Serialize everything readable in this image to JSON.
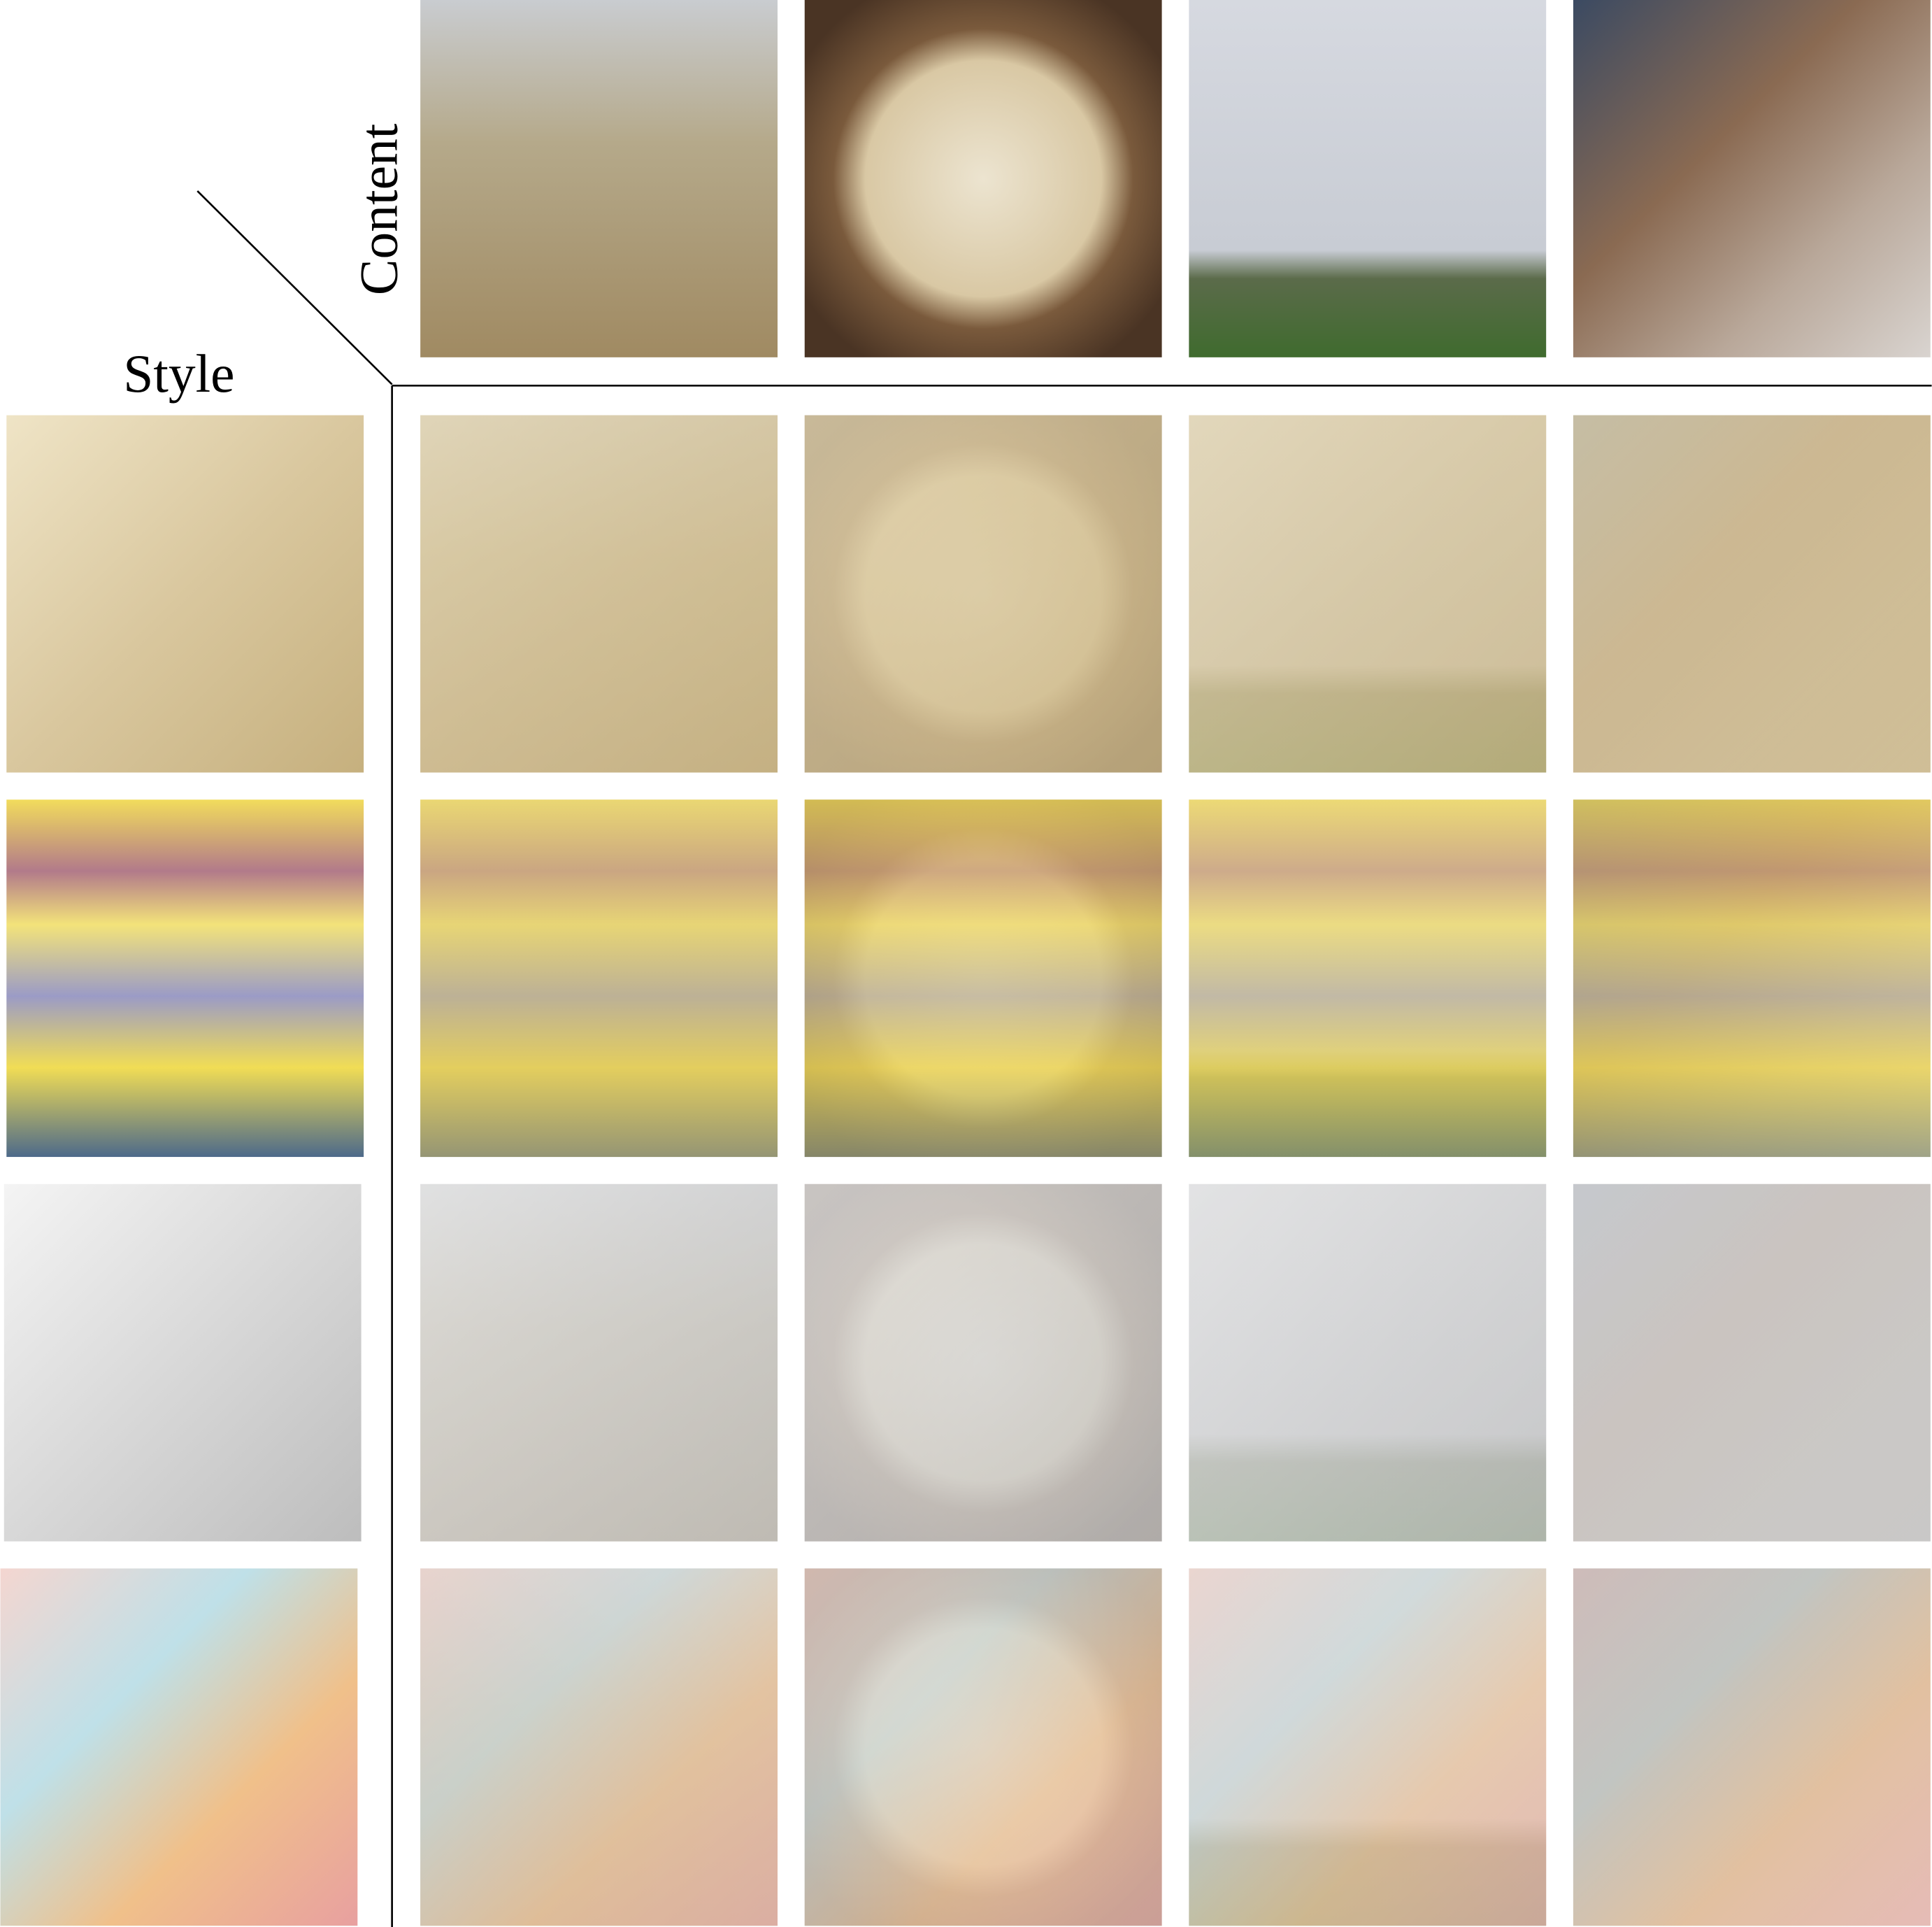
{
  "labels": {
    "content": "Content",
    "style": "Style"
  }
}
